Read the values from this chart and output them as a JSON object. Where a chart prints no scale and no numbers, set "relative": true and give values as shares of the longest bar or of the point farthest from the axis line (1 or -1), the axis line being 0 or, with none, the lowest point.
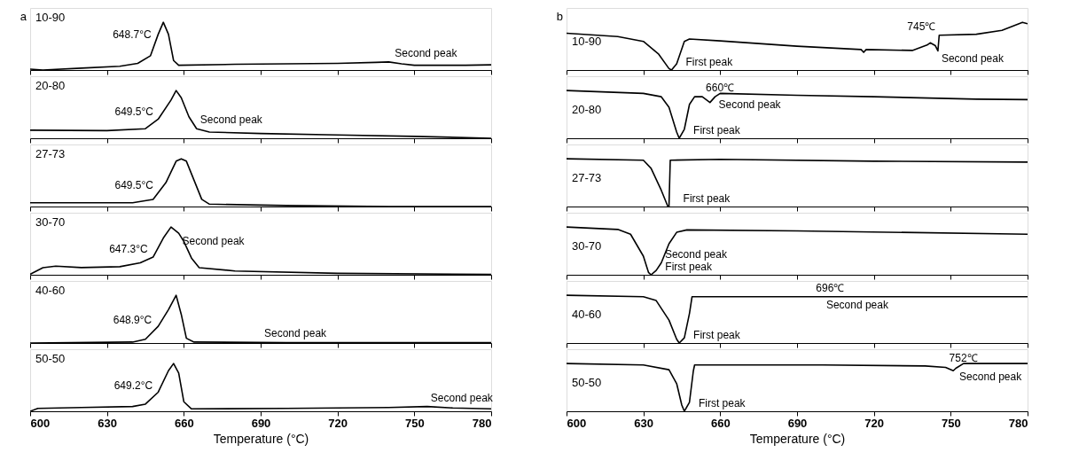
{
  "chart_data": [
    {
      "type": "line",
      "title": "10-90",
      "relative": true,
      "color": "#000000",
      "xlim": [
        600,
        780
      ],
      "xticks": [
        600,
        630,
        660,
        690,
        720,
        750,
        780
      ],
      "tick_labels": false,
      "annotations": [
        "a",
        {
          "text": "648.7°C",
          "x": 648.7,
          "y": 0.55
        },
        {
          "text": "Second peak",
          "x": 741,
          "y": 0.17
        }
      ],
      "x": [
        600,
        605,
        620,
        635,
        642,
        647,
        650,
        652,
        654,
        656,
        658,
        680,
        720,
        735,
        740,
        745,
        750,
        770,
        780
      ],
      "values": [
        0.02,
        0,
        0.04,
        0.08,
        0.14,
        0.3,
        0.75,
        1,
        0.75,
        0.2,
        0.1,
        0.12,
        0.14,
        0.16,
        0.17,
        0.13,
        0.1,
        0.1,
        0.11
      ]
    },
    {
      "type": "line",
      "title": "20-80",
      "relative": true,
      "color": "#000000",
      "xlim": [
        600,
        780
      ],
      "xticks": [
        600,
        630,
        660,
        690,
        720,
        750,
        780
      ],
      "tick_labels": false,
      "annotations": [
        {
          "text": "649.5°C",
          "x": 649.5,
          "y": 0.38
        },
        {
          "text": "Second peak",
          "x": 665,
          "y": 0.2
        }
      ],
      "x": [
        600,
        630,
        645,
        650,
        655,
        657,
        659,
        662,
        665,
        670,
        690,
        720,
        750,
        780
      ],
      "values": [
        0.17,
        0.16,
        0.2,
        0.4,
        0.8,
        1,
        0.85,
        0.45,
        0.2,
        0.13,
        0.1,
        0.07,
        0.04,
        0
      ]
    },
    {
      "type": "line",
      "title": "27-73",
      "relative": true,
      "color": "#000000",
      "xlim": [
        600,
        780
      ],
      "xticks": [
        600,
        630,
        660,
        690,
        720,
        750,
        780
      ],
      "tick_labels": false,
      "annotations": [
        {
          "text": "649.5°C",
          "x": 649.5,
          "y": 0.255
        }
      ],
      "x": [
        600,
        640,
        648,
        653,
        657,
        659,
        661,
        664,
        667,
        670,
        700,
        740,
        780
      ],
      "values": [
        0.08,
        0.08,
        0.15,
        0.5,
        0.95,
        1,
        0.95,
        0.55,
        0.15,
        0.05,
        0.02,
        0,
        0
      ]
    },
    {
      "type": "line",
      "title": "30-70",
      "relative": true,
      "color": "#000000",
      "xlim": [
        600,
        780
      ],
      "xticks": [
        600,
        630,
        660,
        690,
        720,
        750,
        780
      ],
      "tick_labels": false,
      "annotations": [
        {
          "text": "647.3°C",
          "x": 647.3,
          "y": 0.35
        },
        {
          "text": "Second peak",
          "x": 658,
          "y": 0.87
        }
      ],
      "x": [
        600,
        605,
        610,
        620,
        635,
        643,
        648,
        652,
        655,
        658,
        660,
        663,
        666,
        680,
        720,
        780
      ],
      "values": [
        0.01,
        0.15,
        0.18,
        0.15,
        0.17,
        0.25,
        0.37,
        0.77,
        1,
        0.87,
        0.7,
        0.35,
        0.15,
        0.08,
        0.03,
        0.01
      ]
    },
    {
      "type": "line",
      "title": "40-60",
      "relative": true,
      "color": "#000000",
      "xlim": [
        600,
        780
      ],
      "xticks": [
        600,
        630,
        660,
        690,
        720,
        750,
        780
      ],
      "tick_labels": false,
      "annotations": [
        {
          "text": "648.9°C",
          "x": 648.9,
          "y": 0.29
        },
        {
          "text": "Second peak",
          "x": 690,
          "y": 0.01
        }
      ],
      "x": [
        600,
        640,
        645,
        650,
        654,
        657,
        659,
        661,
        664,
        700,
        780
      ],
      "values": [
        0,
        0.02,
        0.08,
        0.35,
        0.7,
        1,
        0.6,
        0.1,
        0.02,
        0.01,
        0.01
      ]
    },
    {
      "type": "line",
      "title": "50-50",
      "relative": true,
      "color": "#000000",
      "xlim": [
        600,
        780
      ],
      "xticks": [
        600,
        630,
        660,
        690,
        720,
        750,
        780
      ],
      "tick_labels": "x",
      "xlabel": "Temperature (°C)",
      "annotations": [
        {
          "text": "649.2°C",
          "x": 649.2,
          "y": 0.36
        },
        {
          "text": "Second peak",
          "x": 755,
          "y": 0.1
        }
      ],
      "x": [
        600,
        603,
        620,
        640,
        645,
        650,
        654,
        656,
        658,
        660,
        663,
        700,
        740,
        755,
        765,
        780
      ],
      "values": [
        0,
        0.06,
        0.08,
        0.1,
        0.15,
        0.4,
        0.85,
        1,
        0.8,
        0.2,
        0.05,
        0.06,
        0.08,
        0.1,
        0.07,
        0.05
      ]
    },
    {
      "type": "line",
      "title": "10-90",
      "relative": true,
      "color": "#000000",
      "xlim": [
        600,
        780
      ],
      "xticks": [
        600,
        630,
        660,
        690,
        720,
        750,
        780
      ],
      "tick_labels": false,
      "annotations": [
        "b",
        {
          "text": "First peak",
          "x": 641,
          "y": 0
        },
        {
          "text": "745℃",
          "x": 745.5,
          "y": 0.73
        },
        {
          "text": "Second peak",
          "x": 745,
          "y": 0.4
        }
      ],
      "x": [
        600,
        620,
        630,
        636,
        640,
        641,
        643,
        646,
        648,
        660,
        690,
        715,
        716,
        717,
        735,
        741,
        742,
        744,
        745,
        745.5,
        760,
        770,
        778,
        780
      ],
      "values": [
        0.77,
        0.7,
        0.6,
        0.33,
        0.03,
        0,
        0.13,
        0.6,
        0.65,
        0.61,
        0.5,
        0.43,
        0.37,
        0.43,
        0.41,
        0.53,
        0.57,
        0.51,
        0.4,
        0.73,
        0.75,
        0.83,
        1,
        0.97
      ]
    },
    {
      "type": "line",
      "title": "20-80",
      "relative": true,
      "color": "#000000",
      "xlim": [
        600,
        780
      ],
      "xticks": [
        600,
        630,
        660,
        690,
        720,
        750,
        780
      ],
      "tick_labels": false,
      "annotations": [
        {
          "text": "First peak",
          "x": 644,
          "y": 0
        },
        {
          "text": "660℃",
          "x": 653,
          "y": 0.87
        },
        {
          "text": "Second peak",
          "x": 658,
          "y": 0.87
        }
      ],
      "x": [
        600,
        630,
        637,
        640,
        643,
        644,
        646,
        648,
        650,
        653,
        656,
        658,
        660,
        690,
        720,
        760,
        780
      ],
      "values": [
        1,
        0.94,
        0.87,
        0.65,
        0.13,
        0,
        0.19,
        0.71,
        0.87,
        0.87,
        0.75,
        0.87,
        0.94,
        0.9,
        0.87,
        0.82,
        0.81
      ]
    },
    {
      "type": "line",
      "title": "27-73",
      "relative": true,
      "color": "#000000",
      "xlim": [
        600,
        780
      ],
      "xticks": [
        600,
        630,
        660,
        690,
        720,
        750,
        780
      ],
      "tick_labels": false,
      "annotations": [
        {
          "text": "First peak",
          "x": 640,
          "y": 0
        }
      ],
      "x": [
        600,
        630,
        633,
        637,
        639.5,
        640,
        640.5,
        660,
        720,
        780
      ],
      "values": [
        1,
        0.97,
        0.8,
        0.34,
        0.01,
        0,
        0.97,
        0.99,
        0.95,
        0.93
      ]
    },
    {
      "type": "line",
      "title": "30-70",
      "relative": true,
      "color": "#000000",
      "xlim": [
        600,
        780
      ],
      "xticks": [
        600,
        630,
        660,
        690,
        720,
        750,
        780
      ],
      "tick_labels": false,
      "annotations": [
        {
          "text": "Second peak",
          "x": 637,
          "y": 0.25
        },
        {
          "text": "First peak",
          "x": 633,
          "y": 0
        }
      ],
      "x": [
        600,
        620,
        625,
        630,
        632,
        633,
        635,
        637,
        640,
        643,
        647,
        690,
        780
      ],
      "values": [
        1,
        0.95,
        0.85,
        0.39,
        0.05,
        0,
        0.09,
        0.25,
        0.65,
        0.89,
        0.94,
        0.92,
        0.85
      ]
    },
    {
      "type": "line",
      "title": "40-60",
      "relative": true,
      "color": "#000000",
      "xlim": [
        600,
        780
      ],
      "xticks": [
        600,
        630,
        660,
        690,
        720,
        750,
        780
      ],
      "tick_labels": false,
      "annotations": [
        {
          "text": "696℃",
          "x": 696,
          "y": 0.97
        },
        {
          "text": "Second peak",
          "x": 700,
          "y": 0.97
        },
        {
          "text": "First peak",
          "x": 644,
          "y": 0
        }
      ],
      "x": [
        600,
        630,
        635,
        640,
        643,
        644,
        646,
        648,
        649,
        690,
        780
      ],
      "values": [
        1,
        0.97,
        0.89,
        0.48,
        0.08,
        0,
        0.11,
        0.62,
        0.97,
        0.97,
        0.97
      ]
    },
    {
      "type": "line",
      "title": "50-50",
      "relative": true,
      "color": "#000000",
      "xlim": [
        600,
        780
      ],
      "xticks": [
        600,
        630,
        660,
        690,
        720,
        750,
        780
      ],
      "tick_labels": "x",
      "xlabel": "Temperature (°C)",
      "annotations": [
        {
          "text": "752℃",
          "x": 748,
          "y": 0.92
        },
        {
          "text": "Second peak",
          "x": 752,
          "y": 0.9
        },
        {
          "text": "First peak",
          "x": 646,
          "y": 0
        }
      ],
      "x": [
        600,
        630,
        640,
        643,
        645,
        646,
        648,
        649.5,
        650,
        700,
        740,
        748,
        751,
        752,
        755,
        780
      ],
      "values": [
        1,
        0.97,
        0.87,
        0.58,
        0.13,
        0,
        0.19,
        0.84,
        0.97,
        0.97,
        0.95,
        0.92,
        0.85,
        0.9,
        1,
        1
      ]
    }
  ]
}
